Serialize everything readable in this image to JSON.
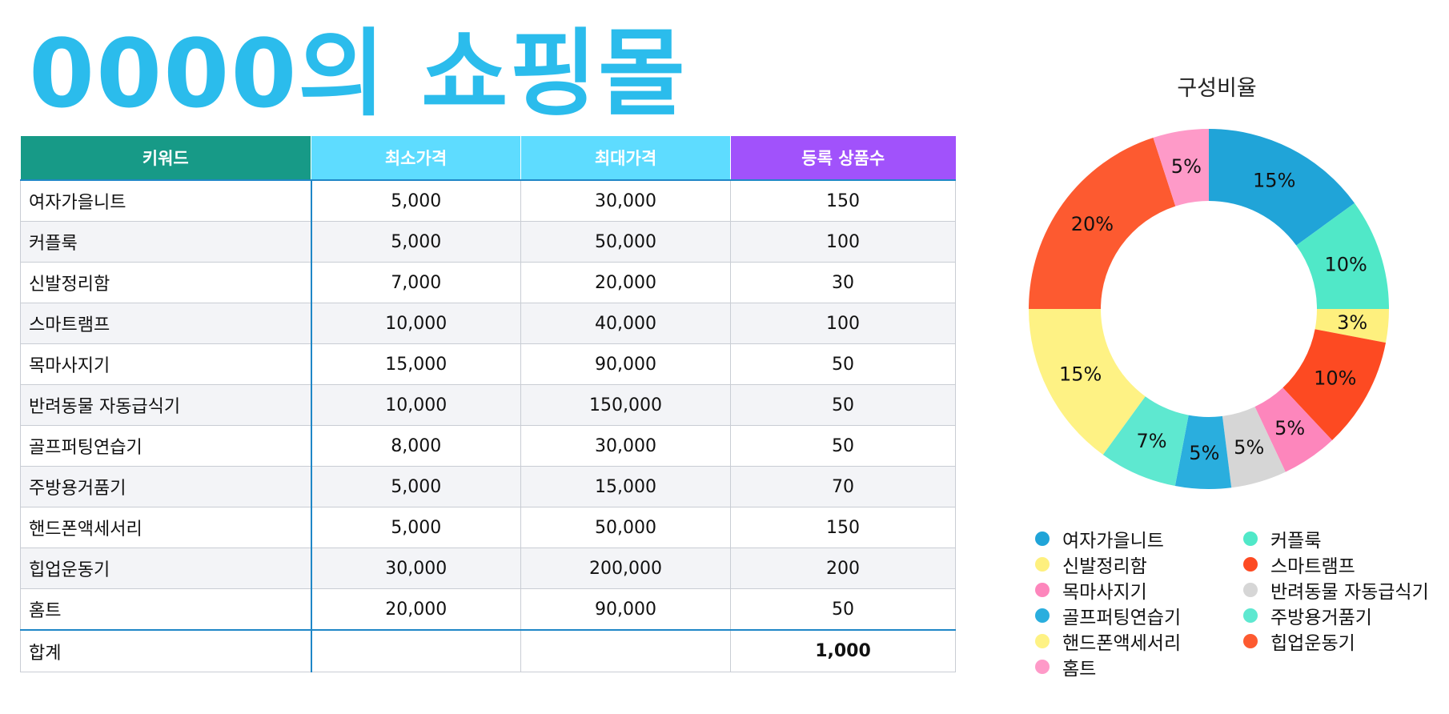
{
  "page": {
    "title": "0000의 쇼핑몰"
  },
  "table": {
    "headers": [
      "키워드",
      "최소가격",
      "최대가격",
      "등록 상품수"
    ],
    "rows": [
      [
        "여자가을니트",
        "5,000",
        "30,000",
        "150"
      ],
      [
        "커플룩",
        "5,000",
        "50,000",
        "100"
      ],
      [
        "신발정리함",
        "7,000",
        "20,000",
        "30"
      ],
      [
        "스마트램프",
        "10,000",
        "40,000",
        "100"
      ],
      [
        "목마사지기",
        "15,000",
        "90,000",
        "50"
      ],
      [
        "반려동물 자동급식기",
        "10,000",
        "150,000",
        "50"
      ],
      [
        "골프퍼팅연습기",
        "8,000",
        "30,000",
        "50"
      ],
      [
        "주방용거품기",
        "5,000",
        "15,000",
        "70"
      ],
      [
        "핸드폰액세서리",
        "5,000",
        "50,000",
        "150"
      ],
      [
        "힙업운동기",
        "30,000",
        "200,000",
        "200"
      ],
      [
        "홈트",
        "20,000",
        "90,000",
        "50"
      ]
    ],
    "total": {
      "label": "합계",
      "value": "1,000"
    },
    "header_colors": [
      "#179a87",
      "#5edcff",
      "#5edcff",
      "#a152fb"
    ]
  },
  "chart_data": {
    "type": "pie",
    "title": "구성비율",
    "categories": [
      "여자가을니트",
      "커플룩",
      "신발정리함",
      "스마트램프",
      "목마사지기",
      "반려동물 자동급식기",
      "골프퍼팅연습기",
      "주방용거품기",
      "핸드폰액세서리",
      "힙업운동기",
      "홈트"
    ],
    "values": [
      15,
      10,
      3,
      10,
      5,
      5,
      5,
      7,
      15,
      20,
      5
    ],
    "labels": [
      "15%",
      "10%",
      "3%",
      "10%",
      "5%",
      "5%",
      "5%",
      "7%",
      "15%",
      "20%",
      "5%"
    ],
    "colors": [
      "#20a4d8",
      "#50e8c8",
      "#fef07e",
      "#fd4a22",
      "#fd86bc",
      "#d6d6d6",
      "#2aaede",
      "#5ee8d0",
      "#fef284",
      "#fd5a30",
      "#fe9ac8"
    ],
    "donut": true,
    "legend_position": "bottom"
  }
}
